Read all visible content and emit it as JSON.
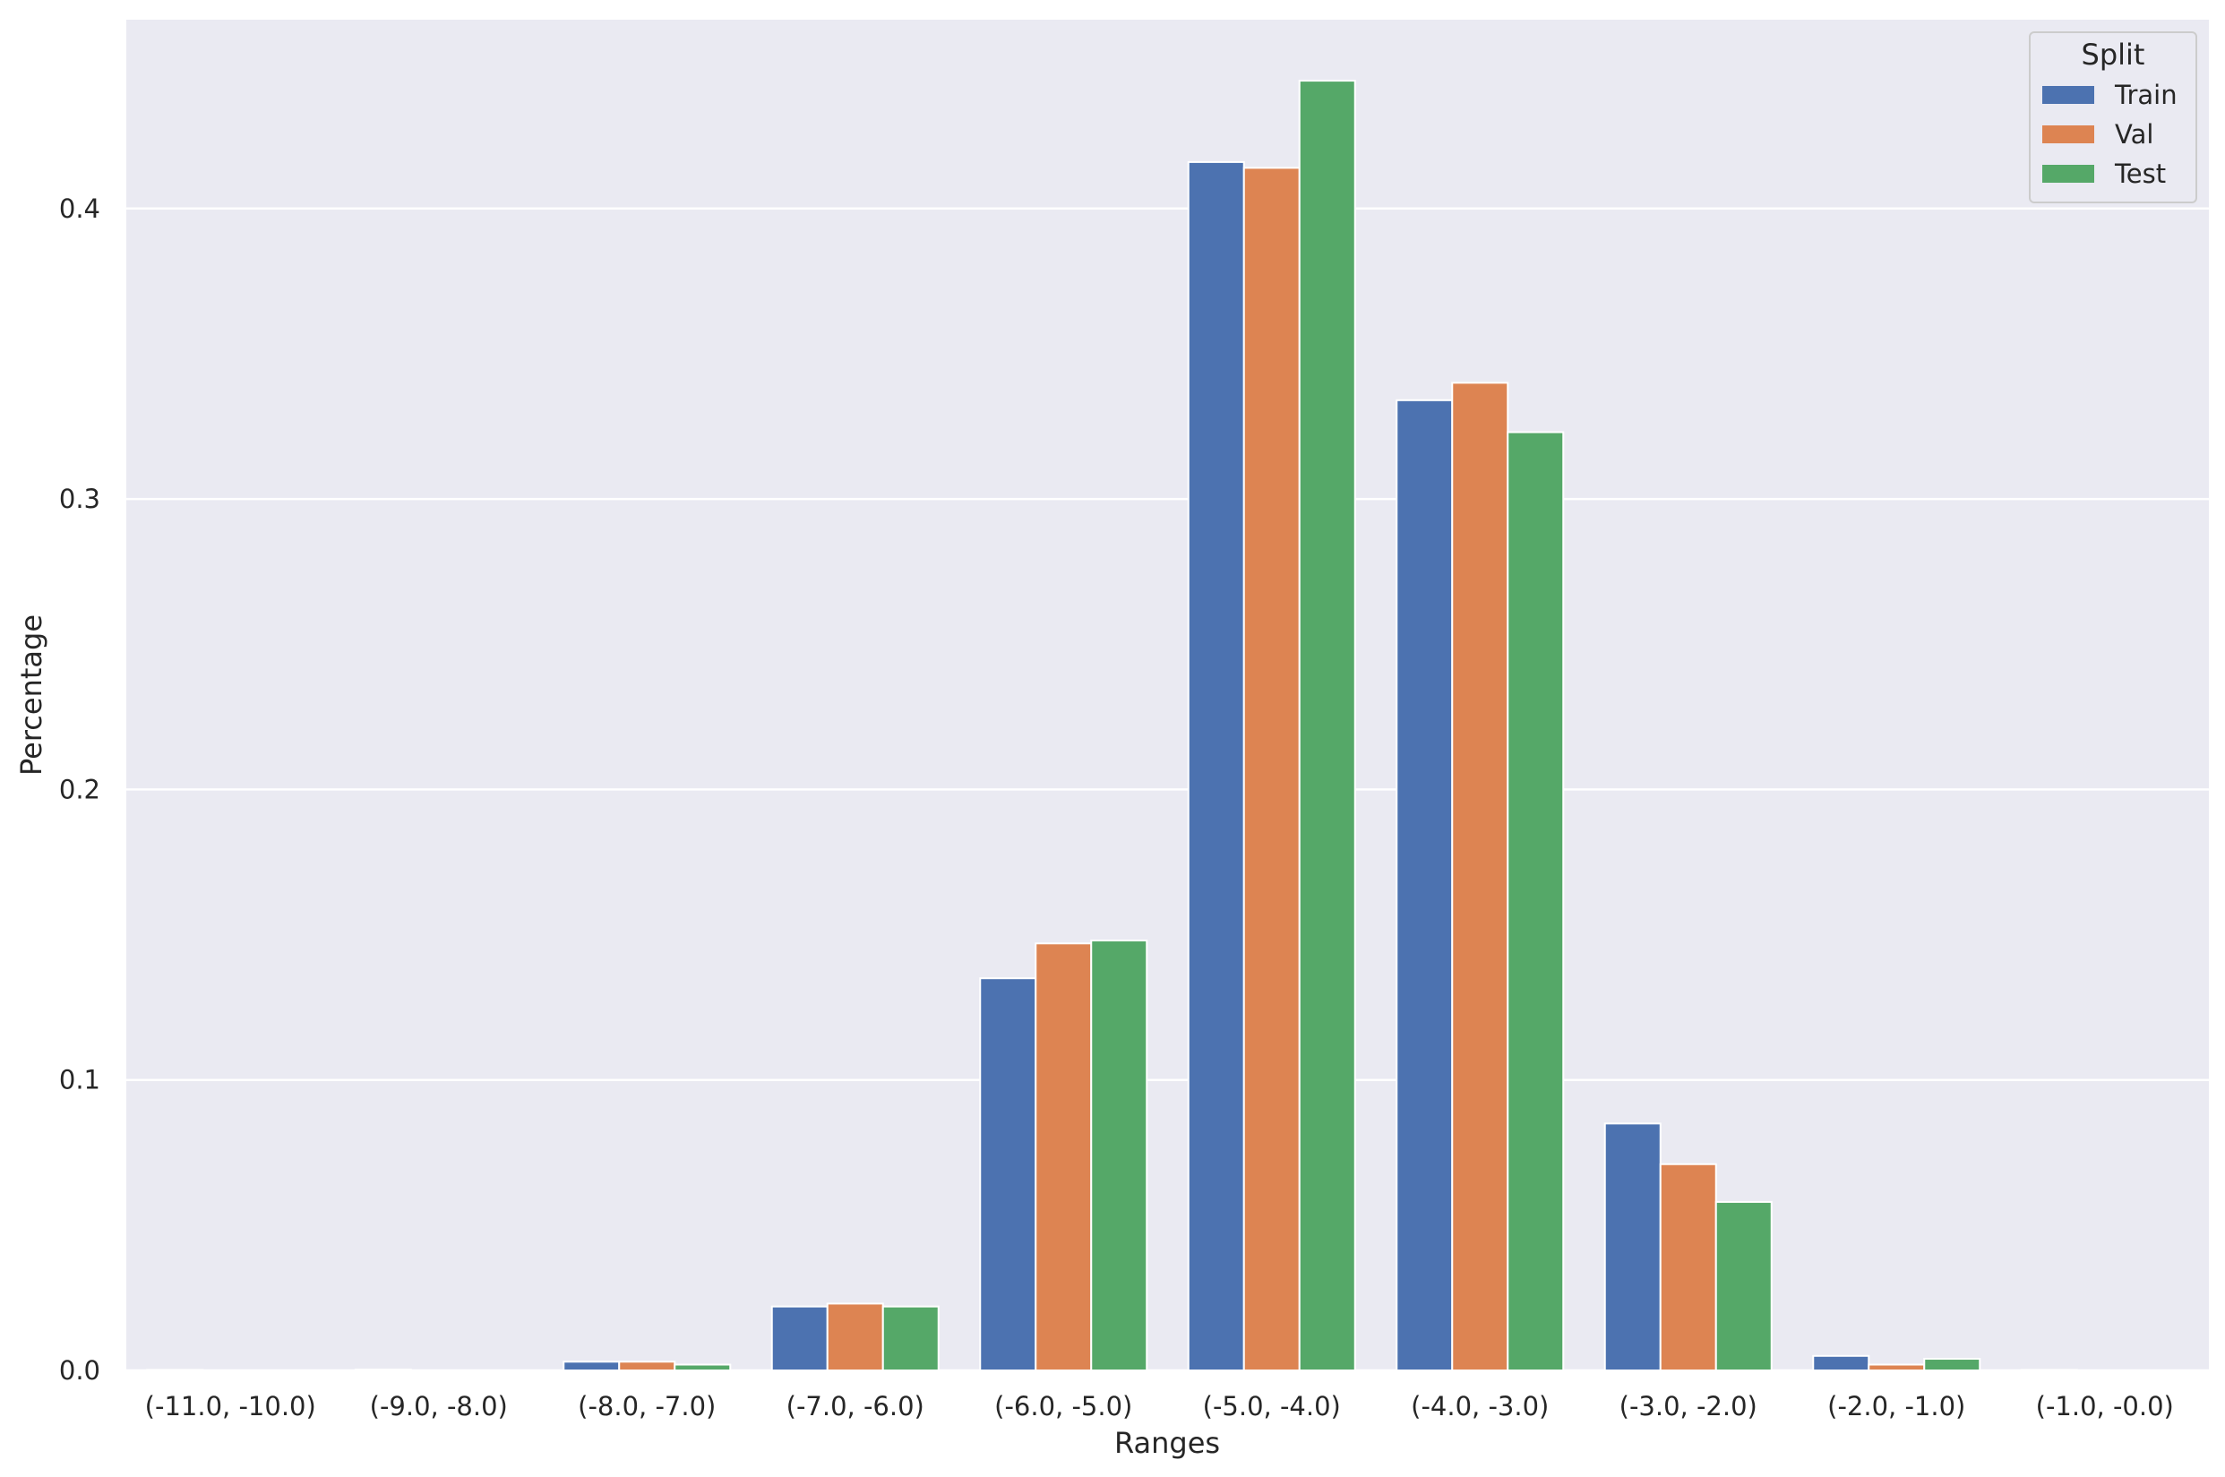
{
  "chart_data": {
    "type": "bar",
    "xlabel": "Ranges",
    "ylabel": "Percentage",
    "ylim": [
      0,
      0.465
    ],
    "yticks": [
      0.0,
      0.1,
      0.2,
      0.3,
      0.4
    ],
    "ytick_labels": [
      "0.0",
      "0.1",
      "0.2",
      "0.3",
      "0.4"
    ],
    "grid": true,
    "legend": {
      "title": "Split",
      "placement": "top-right"
    },
    "categories": [
      "(-11.0, -10.0)",
      "(-9.0, -8.0)",
      "(-8.0, -7.0)",
      "(-7.0, -6.0)",
      "(-6.0, -5.0)",
      "(-5.0, -4.0)",
      "(-4.0, -3.0)",
      "(-3.0, -2.0)",
      "(-2.0, -1.0)",
      "(-1.0, -0.0)"
    ],
    "series": [
      {
        "name": "Train",
        "color": "#4c72b0",
        "values": [
          0.0002,
          0.0003,
          0.003,
          0.022,
          0.135,
          0.416,
          0.334,
          0.085,
          0.005,
          0.0002
        ]
      },
      {
        "name": "Val",
        "color": "#dd8452",
        "values": [
          0.0,
          0.0,
          0.003,
          0.023,
          0.147,
          0.414,
          0.34,
          0.071,
          0.002,
          0.0
        ]
      },
      {
        "name": "Test",
        "color": "#55a868",
        "values": [
          0.0,
          0.0,
          0.002,
          0.022,
          0.148,
          0.444,
          0.323,
          0.058,
          0.004,
          0.0
        ]
      }
    ]
  }
}
